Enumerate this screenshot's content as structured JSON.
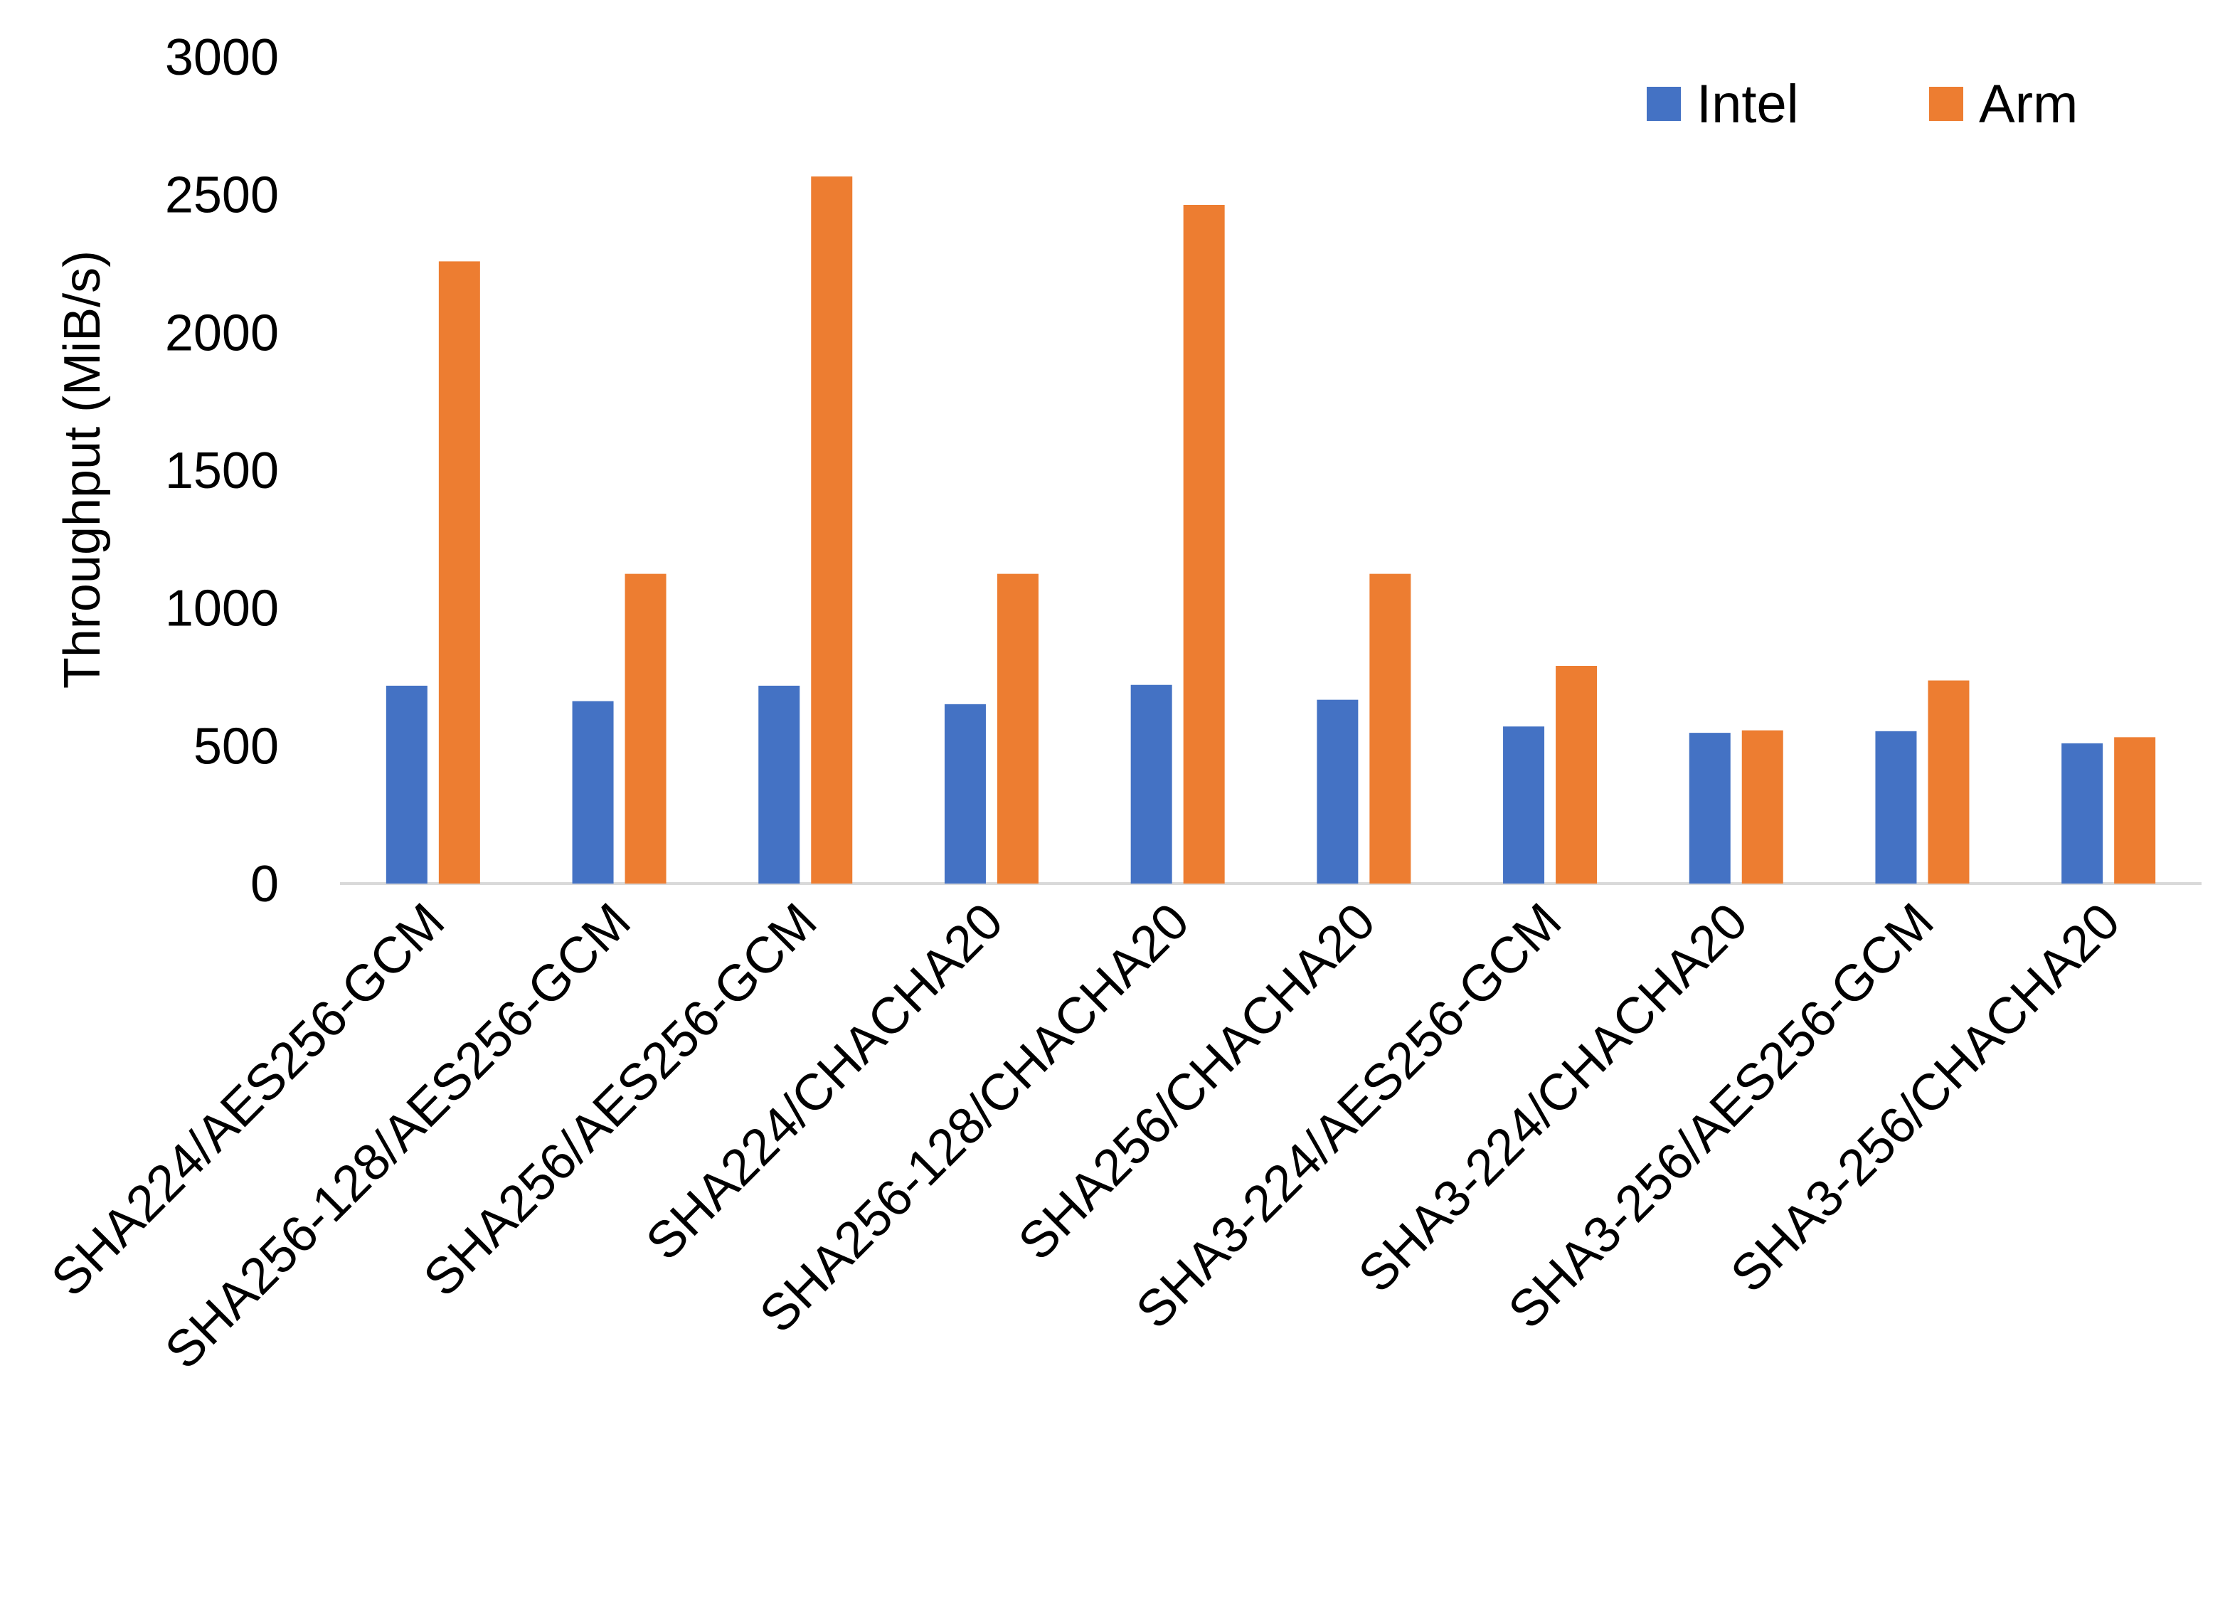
{
  "chart_data": {
    "type": "bar",
    "title": "",
    "xlabel": "",
    "ylabel": "Throughput (MiB/s)",
    "ylim": [
      0,
      3000
    ],
    "yticks": [
      "0",
      "500",
      "1000",
      "1500",
      "2000",
      "2500",
      "3000"
    ],
    "grid": false,
    "legend_position": "top-right",
    "categories": [
      "SHA224/AES256-GCM",
      "SHA256-128/AES256-GCM",
      "SHA256/AES256-GCM",
      "SHA224/CHACHA20",
      "SHA256-128/CHACHA20",
      "SHA256/CHACHA20",
      "SHA3-224/AES256-GCM",
      "SHA3-224/CHACHA20",
      "SHA3-256/AES256-GCM",
      "SHA3-256/CHACHA20"
    ],
    "series": [
      {
        "name": "Intel",
        "color": "#4472C4",
        "values": [
          718,
          662,
          718,
          651,
          721,
          667,
          570,
          547,
          553,
          509
        ]
      },
      {
        "name": "Arm",
        "color": "#ED7D31",
        "values": [
          2258,
          1124,
          2566,
          1124,
          2463,
          1124,
          790,
          556,
          737,
          531
        ]
      }
    ]
  }
}
